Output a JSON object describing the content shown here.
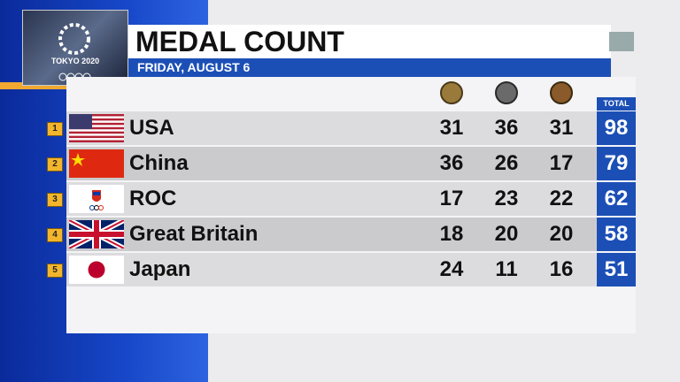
{
  "header": {
    "title": "MEDAL COUNT",
    "subtitle": "FRIDAY, AUGUST 6",
    "logo_text": "TOKYO 2020"
  },
  "table": {
    "total_label": "TOTAL",
    "rows": [
      {
        "rank": "1",
        "country": "USA",
        "gold": "31",
        "silver": "36",
        "bronze": "31",
        "total": "98"
      },
      {
        "rank": "2",
        "country": "China",
        "gold": "36",
        "silver": "26",
        "bronze": "17",
        "total": "79"
      },
      {
        "rank": "3",
        "country": "ROC",
        "gold": "17",
        "silver": "23",
        "bronze": "22",
        "total": "62"
      },
      {
        "rank": "4",
        "country": "Great Britain",
        "gold": "18",
        "silver": "20",
        "bronze": "20",
        "total": "58"
      },
      {
        "rank": "5",
        "country": "Japan",
        "gold": "24",
        "silver": "11",
        "bronze": "16",
        "total": "51"
      }
    ]
  }
}
